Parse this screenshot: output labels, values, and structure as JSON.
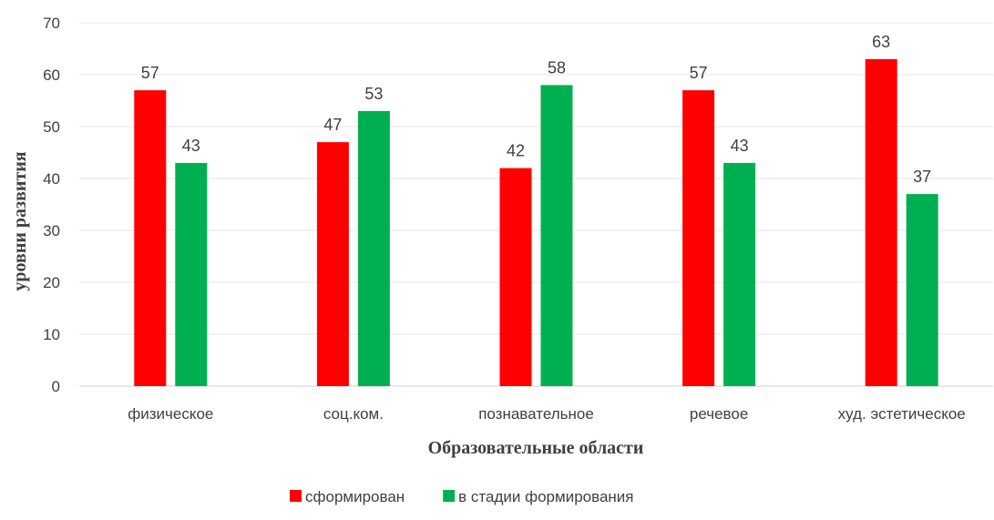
{
  "chart_data": {
    "type": "bar",
    "title": "",
    "xlabel": "Образовательные области",
    "ylabel": "уровни развития",
    "categories": [
      "физическое",
      "соц.ком.",
      "познавательное",
      "речевое",
      "худ. эстетическое"
    ],
    "series": [
      {
        "name": "сформирован",
        "color": "#ff0000",
        "values": [
          57,
          47,
          42,
          57,
          63
        ]
      },
      {
        "name": "в стадии формирования",
        "color": "#00b050",
        "values": [
          43,
          53,
          58,
          43,
          37
        ]
      }
    ],
    "ylim": [
      0,
      70
    ],
    "yticks": [
      0,
      10,
      20,
      30,
      40,
      50,
      60,
      70
    ],
    "grid": true,
    "legend": "bottom"
  }
}
